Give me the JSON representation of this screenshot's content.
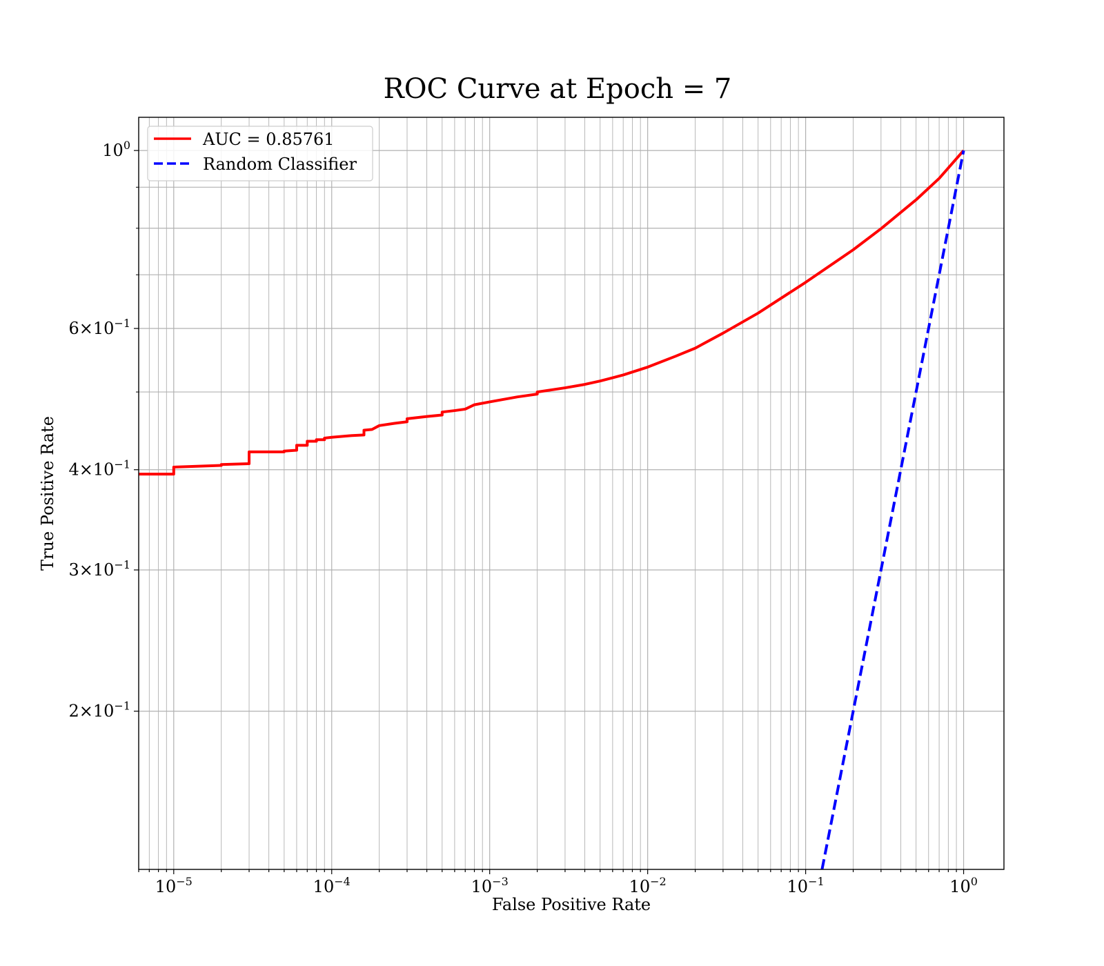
{
  "chart_data": {
    "type": "line",
    "title": "ROC Curve at Epoch = 7",
    "xlabel": "False Positive Rate",
    "ylabel": "True Positive Rate",
    "xscale": "log",
    "yscale": "log",
    "xlim": [
      6e-06,
      1.8
    ],
    "ylim": [
      0.127,
      1.1
    ],
    "grid": "both (major and minor)",
    "legend_position": "upper-left",
    "xticks": [
      {
        "value": 1e-05,
        "base": "10",
        "exp": "−5"
      },
      {
        "value": 0.0001,
        "base": "10",
        "exp": "−4"
      },
      {
        "value": 0.001,
        "base": "10",
        "exp": "−3"
      },
      {
        "value": 0.01,
        "base": "10",
        "exp": "−2"
      },
      {
        "value": 0.1,
        "base": "10",
        "exp": "−1"
      },
      {
        "value": 1,
        "base": "10",
        "exp": "0"
      }
    ],
    "yticks": [
      {
        "value": 1.0,
        "base": "10",
        "exp": "0"
      },
      {
        "value": 0.6,
        "base": "6×10",
        "exp": "−1"
      },
      {
        "value": 0.4,
        "base": "4×10",
        "exp": "−1"
      },
      {
        "value": 0.3,
        "base": "3×10",
        "exp": "−1"
      },
      {
        "value": 0.2,
        "base": "2×10",
        "exp": "−1"
      }
    ],
    "series": [
      {
        "name": "AUC = 0.85761",
        "color": "#ff0000",
        "style": "solid",
        "points": [
          [
            6e-06,
            0.395
          ],
          [
            1e-05,
            0.395
          ],
          [
            1e-05,
            0.403
          ],
          [
            2e-05,
            0.405
          ],
          [
            2e-05,
            0.406
          ],
          [
            3e-05,
            0.407
          ],
          [
            3e-05,
            0.421
          ],
          [
            5e-05,
            0.421
          ],
          [
            5e-05,
            0.422
          ],
          [
            6e-05,
            0.423
          ],
          [
            6e-05,
            0.429
          ],
          [
            7e-05,
            0.429
          ],
          [
            7e-05,
            0.434
          ],
          [
            8e-05,
            0.434
          ],
          [
            8e-05,
            0.436
          ],
          [
            9e-05,
            0.436
          ],
          [
            9e-05,
            0.438
          ],
          [
            0.0001,
            0.439
          ],
          [
            0.00013,
            0.441
          ],
          [
            0.00016,
            0.442
          ],
          [
            0.00016,
            0.448
          ],
          [
            0.00018,
            0.449
          ],
          [
            0.0002,
            0.454
          ],
          [
            0.00025,
            0.457
          ],
          [
            0.0003,
            0.459
          ],
          [
            0.0003,
            0.463
          ],
          [
            0.0004,
            0.466
          ],
          [
            0.0005,
            0.468
          ],
          [
            0.0005,
            0.472
          ],
          [
            0.0006,
            0.474
          ],
          [
            0.0007,
            0.476
          ],
          [
            0.0008,
            0.482
          ],
          [
            0.001,
            0.486
          ],
          [
            0.0015,
            0.493
          ],
          [
            0.002,
            0.497
          ],
          [
            0.002,
            0.5
          ],
          [
            0.003,
            0.506
          ],
          [
            0.004,
            0.511
          ],
          [
            0.005,
            0.516
          ],
          [
            0.007,
            0.525
          ],
          [
            0.01,
            0.537
          ],
          [
            0.015,
            0.554
          ],
          [
            0.02,
            0.567
          ],
          [
            0.03,
            0.592
          ],
          [
            0.05,
            0.627
          ],
          [
            0.1,
            0.685
          ],
          [
            0.2,
            0.752
          ],
          [
            0.3,
            0.799
          ],
          [
            0.5,
            0.868
          ],
          [
            0.7,
            0.923
          ],
          [
            1.0,
            1.0
          ]
        ]
      },
      {
        "name": "Random Classifier",
        "color": "#0000ff",
        "style": "dashed",
        "points": [
          [
            0.127,
            0.127
          ],
          [
            0.2,
            0.2
          ],
          [
            0.3,
            0.3
          ],
          [
            0.4,
            0.4
          ],
          [
            0.6,
            0.6
          ],
          [
            1.0,
            1.0
          ]
        ]
      }
    ]
  }
}
